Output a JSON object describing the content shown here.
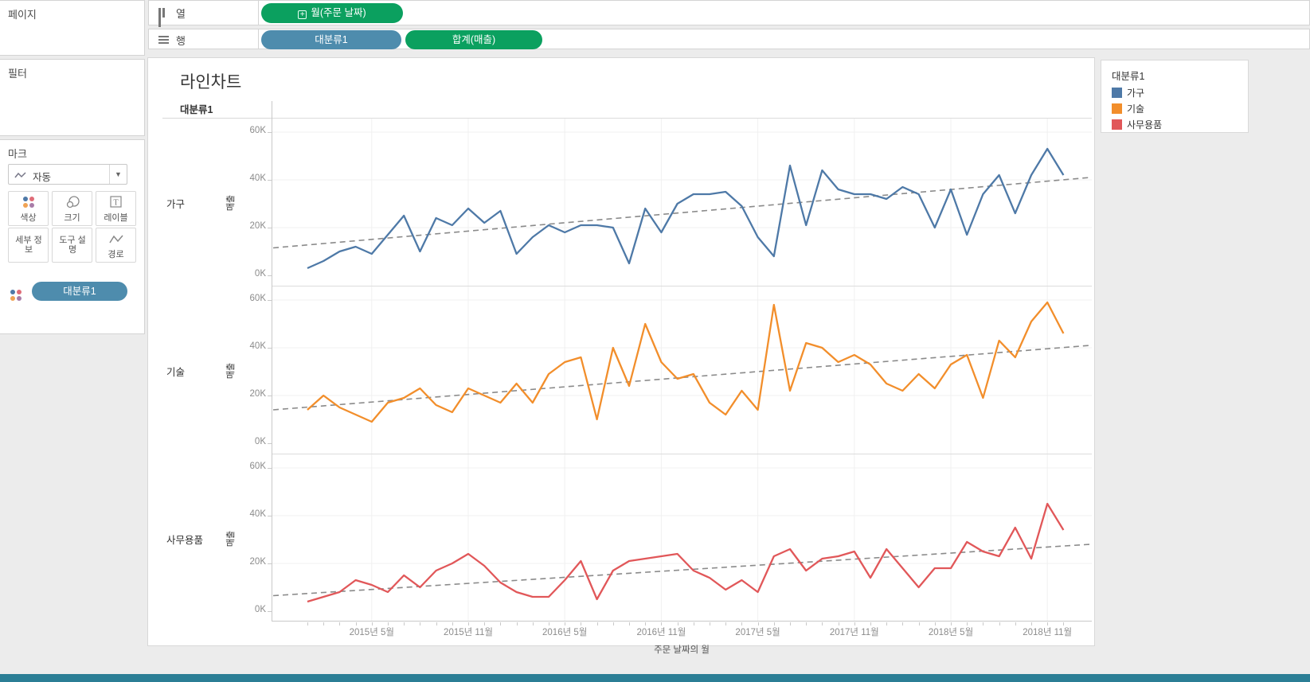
{
  "sidebar": {
    "pages_label": "페이지",
    "filters_label": "필터",
    "marks": {
      "label": "마크",
      "mark_type_selected": "자동",
      "buttons": [
        {
          "label": "색상",
          "icon": "color-dots-icon"
        },
        {
          "label": "크기",
          "icon": "size-circles-icon"
        },
        {
          "label": "레이블",
          "icon": "text-label-icon"
        },
        {
          "label": "세부 정보",
          "icon": ""
        },
        {
          "label": "도구 설명",
          "icon": ""
        },
        {
          "label": "경로",
          "icon": "path-line-icon"
        }
      ],
      "pill": "대분류1"
    }
  },
  "shelves": {
    "columns": {
      "label": "열",
      "pills": [
        {
          "text": "월(주문 날짜)",
          "type": "green",
          "icon": "plus-box-icon"
        }
      ]
    },
    "rows": {
      "label": "행",
      "pills": [
        {
          "text": "대분류1",
          "type": "blue"
        },
        {
          "text": "합계(매출)",
          "type": "green"
        }
      ]
    }
  },
  "sheet": {
    "title": "라인차트",
    "column_header": "대분류1"
  },
  "legend": {
    "title": "대분류1",
    "items": [
      {
        "label": "가구",
        "color": "#4e79a7"
      },
      {
        "label": "기술",
        "color": "#f28e2b"
      },
      {
        "label": "사무용품",
        "color": "#e15759"
      }
    ]
  },
  "colors": {
    "green_pill": "#0ba05f",
    "blue_pill": "#4e8cad",
    "trend_line": "#8a8a8a",
    "accent_bottom_bar": "#2b7e95"
  },
  "chart_data": {
    "type": "line",
    "title": "라인차트",
    "xlabel": "주문 날짜의 월",
    "ylabel": "매출",
    "x_start": "2015-01",
    "x_end": "2018-12",
    "n_points": 48,
    "x_tick_labels": [
      "2015년 5월",
      "2015년 11월",
      "2016년 5월",
      "2016년 11월",
      "2017년 5월",
      "2017년 11월",
      "2018년 5월",
      "2018년 11월"
    ],
    "x_tick_indices": [
      4,
      10,
      16,
      22,
      28,
      34,
      40,
      46
    ],
    "ylim": [
      0,
      65000
    ],
    "yticks": [
      0,
      20000,
      40000,
      60000
    ],
    "ytick_labels": [
      "0K",
      "20K",
      "40K",
      "60K"
    ],
    "grid": true,
    "panels": [
      {
        "name": "가구",
        "color": "#4e79a7",
        "values": [
          3000,
          6000,
          10000,
          12000,
          9000,
          17000,
          25000,
          10000,
          24000,
          21000,
          28000,
          22000,
          27000,
          9000,
          16000,
          21000,
          18000,
          21000,
          21000,
          20000,
          5000,
          28000,
          18000,
          30000,
          34000,
          34000,
          35000,
          29000,
          16000,
          8000,
          46000,
          21000,
          44000,
          36000,
          34000,
          34000,
          32000,
          37000,
          34000,
          20000,
          36000,
          17000,
          34000,
          42000,
          26000,
          42000,
          53000,
          42000
        ],
        "trend_start": 11500,
        "trend_end": 41000
      },
      {
        "name": "기술",
        "color": "#f28e2b",
        "values": [
          14000,
          20000,
          15000,
          12000,
          9000,
          17000,
          19000,
          23000,
          16000,
          13000,
          23000,
          20000,
          17000,
          25000,
          17000,
          29000,
          34000,
          36000,
          10000,
          40000,
          24000,
          50000,
          34000,
          27000,
          29000,
          17000,
          12000,
          22000,
          14000,
          58000,
          22000,
          42000,
          40000,
          34000,
          37000,
          33000,
          25000,
          22000,
          29000,
          23000,
          33000,
          37000,
          19000,
          43000,
          36000,
          51000,
          59000,
          46000
        ],
        "trend_start": 14000,
        "trend_end": 41000
      },
      {
        "name": "사무용품",
        "color": "#e15759",
        "values": [
          4000,
          6000,
          8000,
          13000,
          11000,
          8000,
          15000,
          10000,
          17000,
          20000,
          24000,
          19000,
          12000,
          8000,
          6000,
          6000,
          13000,
          21000,
          5000,
          17000,
          21000,
          22000,
          23000,
          24000,
          17000,
          14000,
          9000,
          13000,
          8000,
          23000,
          26000,
          17000,
          22000,
          23000,
          25000,
          14000,
          26000,
          18000,
          10000,
          18000,
          18000,
          29000,
          25000,
          23000,
          35000,
          22000,
          45000,
          34000
        ],
        "trend_start": 6500,
        "trend_end": 28000
      }
    ]
  }
}
